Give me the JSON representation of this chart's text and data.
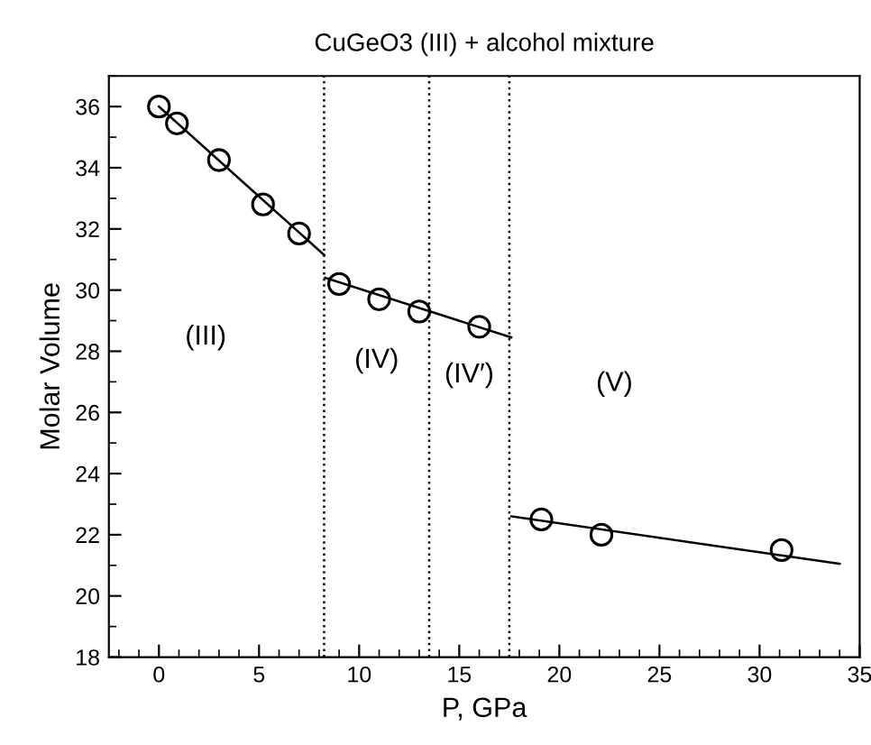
{
  "chart_data": {
    "type": "scatter",
    "title": "CuGeO3 (III) + alcohol mixture",
    "xlabel": "P, GPa",
    "ylabel": "Molar Volume",
    "xlim": [
      -2.5,
      35
    ],
    "ylim": [
      18,
      37
    ],
    "xticks": [
      0,
      5,
      10,
      15,
      20,
      25,
      30,
      35
    ],
    "yticks": [
      18,
      20,
      22,
      24,
      26,
      28,
      30,
      32,
      34,
      36
    ],
    "grid": false,
    "legend": false,
    "series": [
      {
        "marker": "circle",
        "color": "#000000",
        "x": [
          0,
          0.9,
          3.0,
          5.2,
          7.0,
          9.0,
          11.0,
          13.0,
          16.0,
          19.1,
          22.1,
          31.1
        ],
        "values": [
          36.0,
          35.45,
          34.25,
          32.8,
          31.85,
          30.2,
          29.7,
          29.3,
          28.8,
          22.5,
          22.0,
          21.5
        ]
      },
      {
        "type": "line",
        "marker": "none",
        "line_style": "solid",
        "color": "#000000",
        "x": [
          0,
          8.25
        ],
        "values": [
          36.0,
          31.15
        ]
      },
      {
        "type": "line",
        "marker": "none",
        "line_style": "solid",
        "color": "#000000",
        "x": [
          8.3,
          17.6
        ],
        "values": [
          30.4,
          28.45
        ]
      },
      {
        "type": "line",
        "marker": "none",
        "line_style": "solid",
        "color": "#000000",
        "x": [
          17.6,
          34.0
        ],
        "values": [
          22.6,
          21.05
        ]
      }
    ],
    "ref_lines": [
      {
        "axis": "x",
        "value": 8.25,
        "color": "#000000",
        "line_style": "dotted"
      },
      {
        "axis": "x",
        "value": 13.5,
        "color": "#000000",
        "line_style": "dotted"
      },
      {
        "axis": "x",
        "value": 17.5,
        "color": "#000000",
        "line_style": "dotted"
      }
    ],
    "annotations": [
      "(III)",
      "(IV)",
      "(IV′)",
      "(V)"
    ]
  }
}
